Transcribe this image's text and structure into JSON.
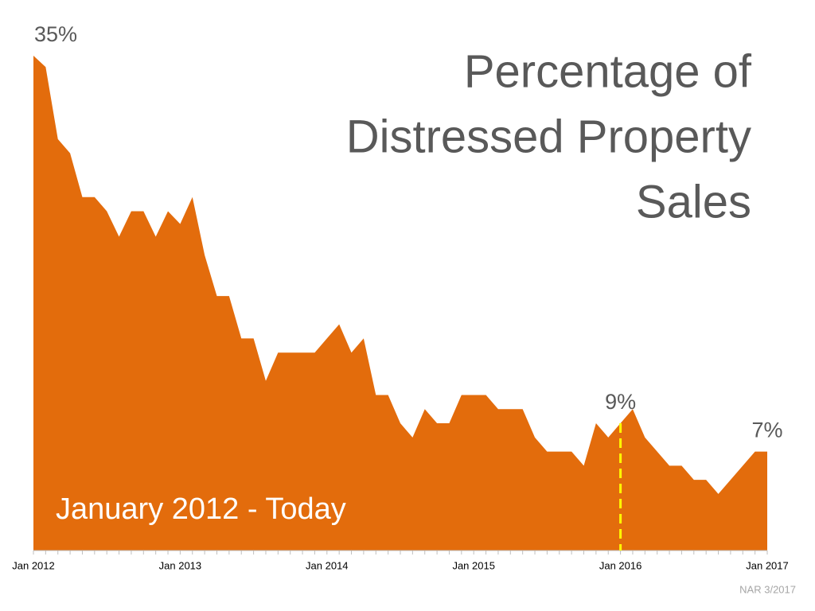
{
  "chart_data": {
    "type": "area",
    "title": [
      "Percentage of",
      "Distressed Property",
      "Sales"
    ],
    "subtitle": "January 2012 - Today",
    "source": "NAR 3/2017",
    "color": "#e36c0c",
    "categories": [
      "Jan 2012",
      null,
      null,
      null,
      null,
      null,
      null,
      null,
      null,
      null,
      null,
      null,
      "Jan 2013",
      null,
      null,
      null,
      null,
      null,
      null,
      null,
      null,
      null,
      null,
      null,
      "Jan 2014",
      null,
      null,
      null,
      null,
      null,
      null,
      null,
      null,
      null,
      null,
      null,
      "Jan 2015",
      null,
      null,
      null,
      null,
      null,
      null,
      null,
      null,
      null,
      null,
      null,
      "Jan 2016",
      null,
      null,
      null,
      null,
      null,
      null,
      null,
      null,
      null,
      null,
      null,
      "Jan 2017"
    ],
    "values": [
      35,
      34.2,
      29.1,
      28.1,
      25,
      25,
      24,
      22.2,
      24,
      24,
      22.2,
      24,
      23.1,
      25,
      20.9,
      18,
      18,
      15,
      15,
      12,
      14,
      14,
      14,
      14,
      15,
      16,
      14,
      15,
      11,
      11,
      9,
      8,
      10,
      9,
      9,
      11,
      11,
      11,
      10,
      10,
      10,
      8,
      7,
      7,
      7,
      6,
      9,
      8,
      9,
      10,
      8,
      7,
      6,
      6,
      5,
      5,
      4,
      5,
      6,
      7,
      7
    ],
    "ylim": [
      0,
      35
    ],
    "annotations": [
      {
        "x": "Jan 2012",
        "value": 35,
        "label": "35%"
      },
      {
        "x": "Jan 2016",
        "value": 9,
        "label": "9%"
      },
      {
        "x": "Jan 2017",
        "value": 7,
        "label": "7%"
      }
    ],
    "highlight": {
      "x": "Jan 2016",
      "color": "#ffff00"
    }
  }
}
